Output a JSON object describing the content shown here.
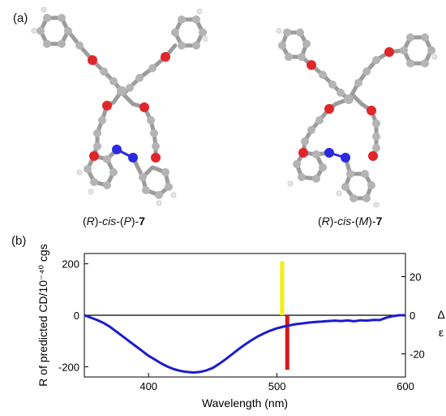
{
  "panels": {
    "a_label": "(a)",
    "b_label": "(b)"
  },
  "molecules": [
    {
      "label_parts": [
        "(",
        "R",
        ")-",
        "cis",
        "-(",
        "P",
        ")-",
        "7"
      ]
    },
    {
      "label_parts": [
        "(",
        "R",
        ")-",
        "cis",
        "-(",
        "M",
        ")-",
        "7"
      ]
    }
  ],
  "colors": {
    "curve": "#1c1ccf",
    "stick_positive": "#f2ef14",
    "stick_negative": "#d61818",
    "carbon": "#a6a6a6",
    "oxygen": "#e0262b",
    "nitrogen": "#2a2ae0",
    "hydrogen": "#f0f0f0"
  },
  "chart_data": {
    "type": "line",
    "xlabel": "Wavelength (nm)",
    "ylabel_left": "R of predicted CD/10⁻⁴⁰ cgs",
    "ylabel_right": [
      "Δ",
      "ε"
    ],
    "xlim": [
      350,
      600
    ],
    "ylim_left": [
      -240,
      240
    ],
    "ylim_right": [
      -32,
      32
    ],
    "x_ticks": [
      400,
      500,
      600
    ],
    "y_ticks_left": [
      200,
      0,
      -200
    ],
    "y_ticks_right": [
      20,
      0,
      -20
    ],
    "grid": false,
    "series": [
      {
        "axis": "right",
        "x": [
          350,
          355,
          360,
          365,
          370,
          375,
          380,
          385,
          390,
          395,
          400,
          405,
          410,
          415,
          420,
          425,
          430,
          435,
          440,
          445,
          450,
          455,
          460,
          465,
          470,
          475,
          480,
          485,
          490,
          495,
          500,
          505,
          510,
          515,
          520,
          525,
          530,
          535,
          540,
          545,
          550,
          555,
          560,
          565,
          570,
          575,
          580,
          585,
          590,
          595,
          600
        ],
        "y": [
          0,
          -1.2,
          -2.5,
          -4.0,
          -6.0,
          -8.5,
          -11.0,
          -13.5,
          -16.0,
          -18.5,
          -21.0,
          -23.0,
          -25.0,
          -26.7,
          -28.0,
          -28.9,
          -29.4,
          -29.7,
          -29.4,
          -28.6,
          -27.3,
          -25.2,
          -22.8,
          -20.2,
          -17.6,
          -15.2,
          -13.0,
          -11.0,
          -9.3,
          -7.9,
          -6.8,
          -5.9,
          -5.2,
          -4.6,
          -4.2,
          -3.8,
          -3.5,
          -3.3,
          -3.0,
          -2.8,
          -3.0,
          -2.7,
          -3.1,
          -2.6,
          -2.8,
          -2.4,
          -2.5,
          -1.3,
          -0.5,
          0,
          0
        ]
      }
    ],
    "sticks": [
      {
        "axis": "left",
        "x": 504,
        "value": 210,
        "color": "#f2ef14"
      },
      {
        "axis": "left",
        "x": 508,
        "value": -212,
        "color": "#d61818"
      }
    ]
  }
}
